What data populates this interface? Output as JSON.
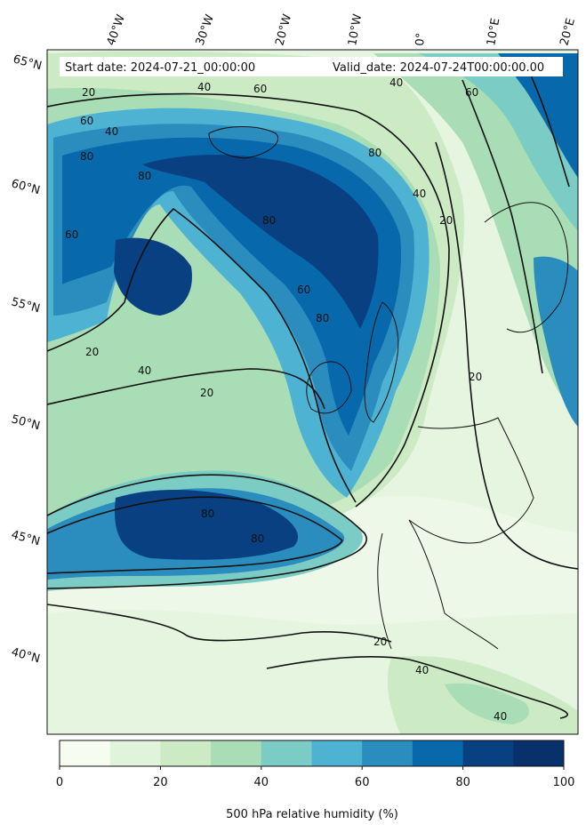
{
  "header": {
    "start_label": "Start date: 2024-07-21_00:00:00",
    "valid_label": "Valid_date: 2024-07-24T00:00:00.00"
  },
  "map": {
    "lon_labels": [
      "40°W",
      "30°W",
      "20°W",
      "10°W",
      "0°",
      "10°E",
      "20°E"
    ],
    "lat_labels": [
      "65°N",
      "60°N",
      "55°N",
      "50°N",
      "45°N",
      "40°N"
    ],
    "contour_labels": [
      "20",
      "40",
      "60",
      "80",
      "40",
      "80",
      "60",
      "60",
      "40",
      "20",
      "80",
      "60",
      "80",
      "40",
      "20",
      "20",
      "80",
      "80",
      "60",
      "80",
      "20",
      "40",
      "20",
      "40",
      "40"
    ]
  },
  "colorbar": {
    "ticks": [
      "0",
      "20",
      "40",
      "60",
      "80",
      "100"
    ],
    "title": "500 hPa relative humidity (%)",
    "colors": [
      "#f7fcf0",
      "#e0f3db",
      "#ccebc5",
      "#a8ddb5",
      "#7bccc4",
      "#4eb3d3",
      "#2b8cbe",
      "#0868ac",
      "#084081",
      "#08306b"
    ]
  }
}
